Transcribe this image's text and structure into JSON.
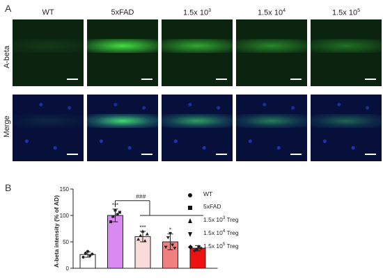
{
  "panel_a_label": "A",
  "panel_b_label": "B",
  "columns": [
    {
      "base": "WT",
      "exp": ""
    },
    {
      "base": "5xFAD",
      "exp": ""
    },
    {
      "base": "1.5x 10",
      "exp": "3"
    },
    {
      "base": "1.5x 10",
      "exp": "4"
    },
    {
      "base": "1.5x 10",
      "exp": "5"
    }
  ],
  "row_labels": [
    "A-beta",
    "Merge"
  ],
  "images": {
    "abeta_band_intensity": [
      0.1,
      0.85,
      0.6,
      0.45,
      0.35
    ],
    "colors": {
      "abeta_bg": "#0b2410",
      "merge_bg": "#06103a",
      "signal": "#4cff4c",
      "nuclei": "#2a4bff"
    }
  },
  "legend": [
    {
      "marker": "circle",
      "base": "WT",
      "exp": "",
      "suffix": ""
    },
    {
      "marker": "square",
      "base": "5xFAD",
      "exp": "",
      "suffix": ""
    },
    {
      "marker": "triangle-up",
      "base": "1.5x 10",
      "exp": "3",
      "suffix": " Treg"
    },
    {
      "marker": "triangle-down",
      "base": "1.5x 10",
      "exp": "4",
      "suffix": " Treg"
    },
    {
      "marker": "diamond",
      "base": "1.5x 10",
      "exp": "5",
      "suffix": " Treg"
    }
  ],
  "chart_data": {
    "type": "bar",
    "categories": [
      "WT",
      "5xFAD",
      "1.5x 10^3 Treg",
      "1.5x 10^4 Treg",
      "1.5x 10^5 Treg"
    ],
    "values": [
      26,
      100,
      60,
      50,
      38
    ],
    "errors": [
      5,
      12,
      10,
      15,
      5
    ],
    "bar_colors": [
      "#ffffff",
      "#d98af0",
      "#fbdcdc",
      "#f08080",
      "#ee1111"
    ],
    "points": [
      [
        21,
        28,
        32,
        24,
        27
      ],
      [
        88,
        98,
        110,
        102,
        106
      ],
      [
        55,
        62,
        70,
        52,
        65
      ],
      [
        40,
        58,
        66,
        44,
        38
      ],
      [
        33,
        36,
        41,
        38
      ]
    ],
    "significance": [
      "",
      "***",
      "***",
      "*",
      ""
    ],
    "bracket_label": "###",
    "ylabel": "A-beta intensity (% of AD)",
    "ylim": [
      0,
      150
    ],
    "yticks": [
      0,
      50,
      100,
      150
    ]
  }
}
